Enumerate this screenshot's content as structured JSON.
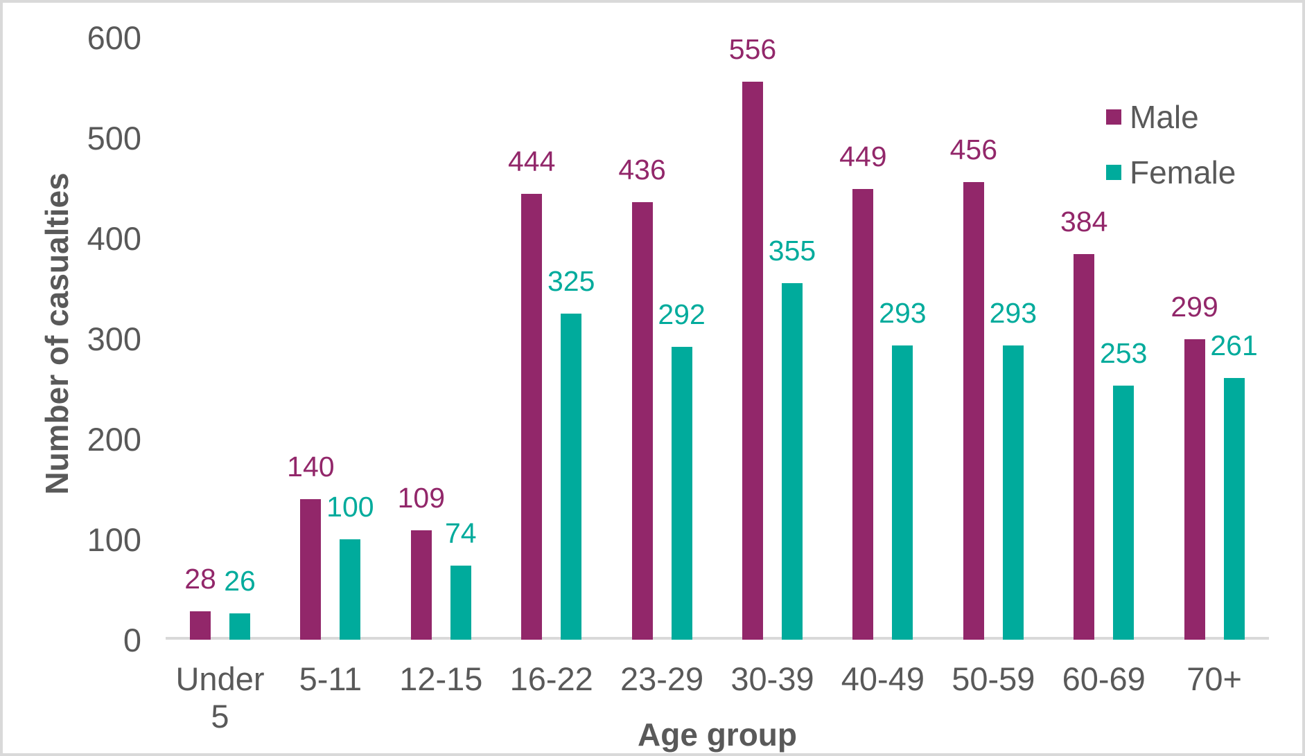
{
  "frame": {
    "background": "#ffffff",
    "border_color": "#d9d9d9"
  },
  "colors": {
    "axis_text": "#595959",
    "axis_line": "#d9d9d9",
    "male": "#92276A",
    "female": "#00AB9C"
  },
  "chart_data": {
    "type": "bar",
    "title": "",
    "xlabel": "Age group",
    "ylabel": "Number of casualties",
    "ylim": [
      0,
      600
    ],
    "yticks": [
      0,
      100,
      200,
      300,
      400,
      500,
      600
    ],
    "grid": false,
    "data_labels": true,
    "legend_position": "top-right",
    "categories": [
      "Under 5",
      "5-11",
      "12-15",
      "16-22",
      "23-29",
      "30-39",
      "40-49",
      "50-59",
      "60-69",
      "70+"
    ],
    "series": [
      {
        "name": "Male",
        "color": "#92276A",
        "values": [
          28,
          140,
          109,
          444,
          436,
          556,
          449,
          456,
          384,
          299
        ]
      },
      {
        "name": "Female",
        "color": "#00AB9C",
        "values": [
          26,
          100,
          74,
          325,
          292,
          355,
          293,
          293,
          253,
          261
        ]
      }
    ]
  }
}
